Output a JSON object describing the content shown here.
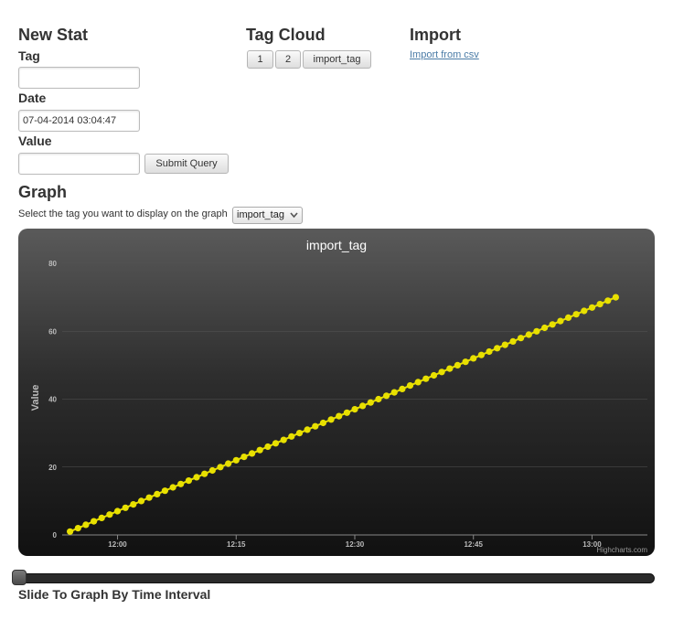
{
  "new_stat": {
    "heading": "New Stat",
    "tag_label": "Tag",
    "tag_value": "",
    "date_label": "Date",
    "date_value": "07-04-2014 03:04:47",
    "value_label": "Value",
    "value_value": "",
    "submit_label": "Submit Query"
  },
  "tag_cloud": {
    "heading": "Tag Cloud",
    "tags": [
      "1",
      "2",
      "import_tag"
    ]
  },
  "import": {
    "heading": "Import",
    "link": "Import from csv"
  },
  "graph": {
    "heading": "Graph",
    "select_prompt": "Select the tag you want to display on the graph",
    "selected_tag": "import_tag",
    "dropdown_arrow": "chevron-down-icon"
  },
  "chart_credit": "Highcharts.com",
  "slider": {
    "label": "Slide To Graph By Time Interval",
    "position": 0
  },
  "colors": {
    "series": "#e8e000",
    "chart_bg_top": "#5a5a5a",
    "chart_bg_bottom": "#111111",
    "link": "#4a7ba6"
  },
  "chart_data": {
    "type": "line",
    "title": "import_tag",
    "xlabel": "",
    "ylabel": "Value",
    "xlim": [
      "11:53",
      "13:07"
    ],
    "ylim": [
      0,
      80
    ],
    "yticks": [
      "0",
      "20",
      "40",
      "60",
      "80"
    ],
    "xticks": [
      "12:00",
      "12:15",
      "12:30",
      "12:45",
      "13:00"
    ],
    "grid": true,
    "legend": "none",
    "series": [
      {
        "x_start": "11:54",
        "x_end": "13:03",
        "x_step_minutes": 1,
        "y_start": 1,
        "y_end": 68,
        "y_step": 1
      }
    ]
  }
}
